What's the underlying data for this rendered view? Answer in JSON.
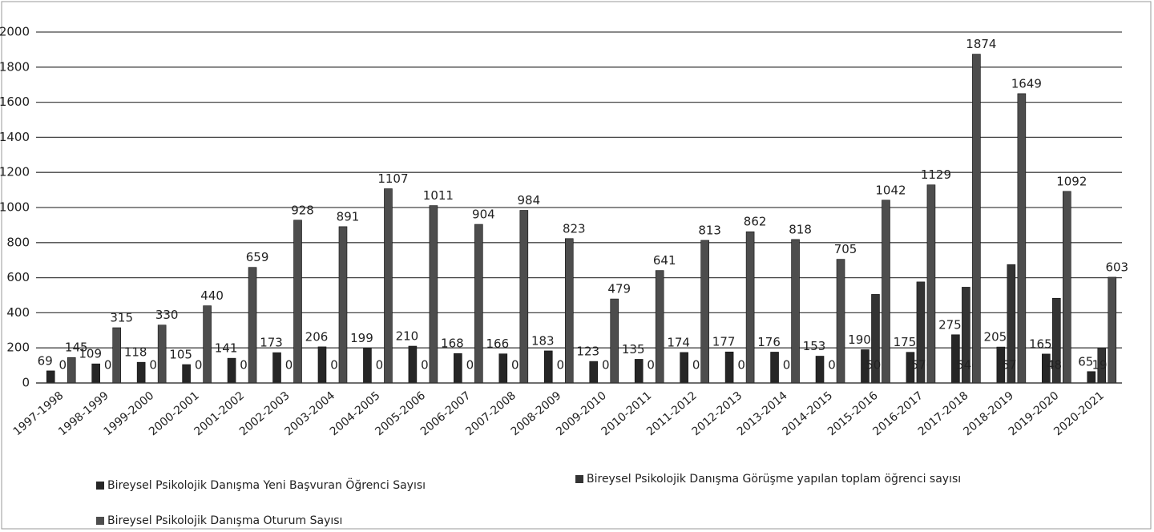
{
  "chart_data": {
    "type": "bar",
    "categories": [
      "1997-1998",
      "1998-1999",
      "1999-2000",
      "2000-2001",
      "2001-2002",
      "2002-2003",
      "2003-2004",
      "2004-2005",
      "2005-2006",
      "2006-2007",
      "2007-2008",
      "2008-2009",
      "2009-2010",
      "2010-2011",
      "2011-2012",
      "2012-2013",
      "2013-2014",
      "2014-2015",
      "2015-2016",
      "2016-2017",
      "2017-2018",
      "2018-2019",
      "2019-2020",
      "2020-2021"
    ],
    "series": [
      {
        "name": "Bireysel Psikolojik Danışma Yeni Başvuran Öğrenci Sayısı",
        "color": "#262626",
        "values": [
          69,
          109,
          118,
          105,
          141,
          173,
          206,
          199,
          210,
          168,
          166,
          183,
          123,
          135,
          174,
          177,
          176,
          153,
          190,
          175,
          275,
          205,
          165,
          65
        ]
      },
      {
        "name": "Bireysel Psikolojik Danışma Görüşme yapılan toplam öğrenci sayısı",
        "color": "#333333",
        "values": [
          0,
          0,
          0,
          0,
          0,
          0,
          0,
          0,
          0,
          0,
          0,
          0,
          0,
          0,
          0,
          0,
          0,
          0,
          505,
          576,
          546,
          675,
          483,
          198
        ]
      },
      {
        "name": "Bireysel Psikolojik Danışma Oturum Sayısı",
        "color": "#4d4d4d",
        "values": [
          145,
          315,
          330,
          440,
          659,
          928,
          891,
          1107,
          1011,
          904,
          984,
          823,
          479,
          641,
          813,
          862,
          818,
          705,
          1042,
          1129,
          1874,
          1649,
          1092,
          603
        ]
      }
    ],
    "ylim": [
      0,
      2000
    ],
    "yticks": [
      0,
      200,
      400,
      600,
      800,
      1000,
      1200,
      1400,
      1600,
      1800,
      2000
    ],
    "grid": true,
    "legend": "bottom"
  }
}
